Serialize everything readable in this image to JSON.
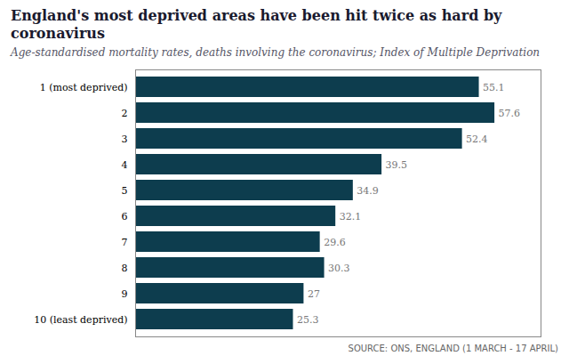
{
  "chart_data": {
    "type": "bar",
    "orientation": "horizontal",
    "title": "England's most deprived areas have been hit twice as hard by coronavirus",
    "subtitle": "Age-standardised mortality rates, deaths involving the coronavirus; Index of Multiple Deprivation",
    "annotations": [
      "SOURCE: ONS, ENGLAND (1 MARCH - 17 APRIL)"
    ],
    "categories": [
      "1 (most deprived)",
      "2",
      "3",
      "4",
      "5",
      "6",
      "7",
      "8",
      "9",
      "10 (least deprived)"
    ],
    "values": [
      55.1,
      57.6,
      52.4,
      39.5,
      34.9,
      32.1,
      29.6,
      30.3,
      27.0,
      25.3
    ],
    "value_labels": [
      "55.1",
      "57.6",
      "52.4",
      "39.5",
      "34.9",
      "32.1",
      "29.6",
      "30.3",
      "27",
      "25.3"
    ],
    "data_labels": true,
    "color": "#0d3d4e",
    "xlim": [
      0,
      65
    ],
    "xticks": [],
    "tick_labels": "y",
    "grid": false
  }
}
